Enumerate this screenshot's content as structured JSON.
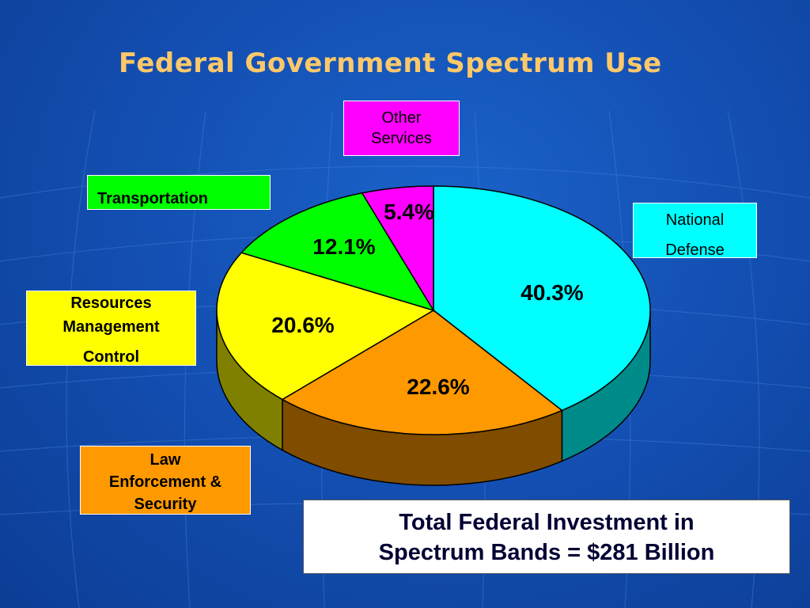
{
  "title": "Federal Government Spectrum Use",
  "total": {
    "line1": "Total Federal Investment in",
    "line2": "Spectrum Bands = $281 Billion"
  },
  "chart_data": {
    "type": "pie",
    "title": "Federal Government Spectrum Use",
    "slices": [
      {
        "label": "National Defense",
        "value": 40.3,
        "value_label": "40.3%",
        "color": "#00ffff",
        "side_color": "#008b8b"
      },
      {
        "label": "Law Enforcement & Security",
        "value": 22.6,
        "value_label": "22.6%",
        "color": "#ff9900",
        "side_color": "#7f4c00"
      },
      {
        "label": "Resources Management Control",
        "value": 20.6,
        "value_label": "20.6%",
        "color": "#ffff00",
        "side_color": "#808000"
      },
      {
        "label": "Transportation",
        "value": 12.1,
        "value_label": "12.1%",
        "color": "#00ff00",
        "side_color": "#008000"
      },
      {
        "label": "Other Services",
        "value": 5.4,
        "value_label": "5.4%",
        "color": "#ff00ff",
        "side_color": "#800080"
      }
    ],
    "legend_labels": {
      "other": [
        "Other",
        "Services"
      ],
      "transportation": [
        "Transportation"
      ],
      "defense": [
        "National",
        "Defense"
      ],
      "resources": [
        "Resources",
        "Management",
        "Control"
      ],
      "law": [
        "Law",
        "Enforcement &",
        "Security"
      ]
    }
  }
}
